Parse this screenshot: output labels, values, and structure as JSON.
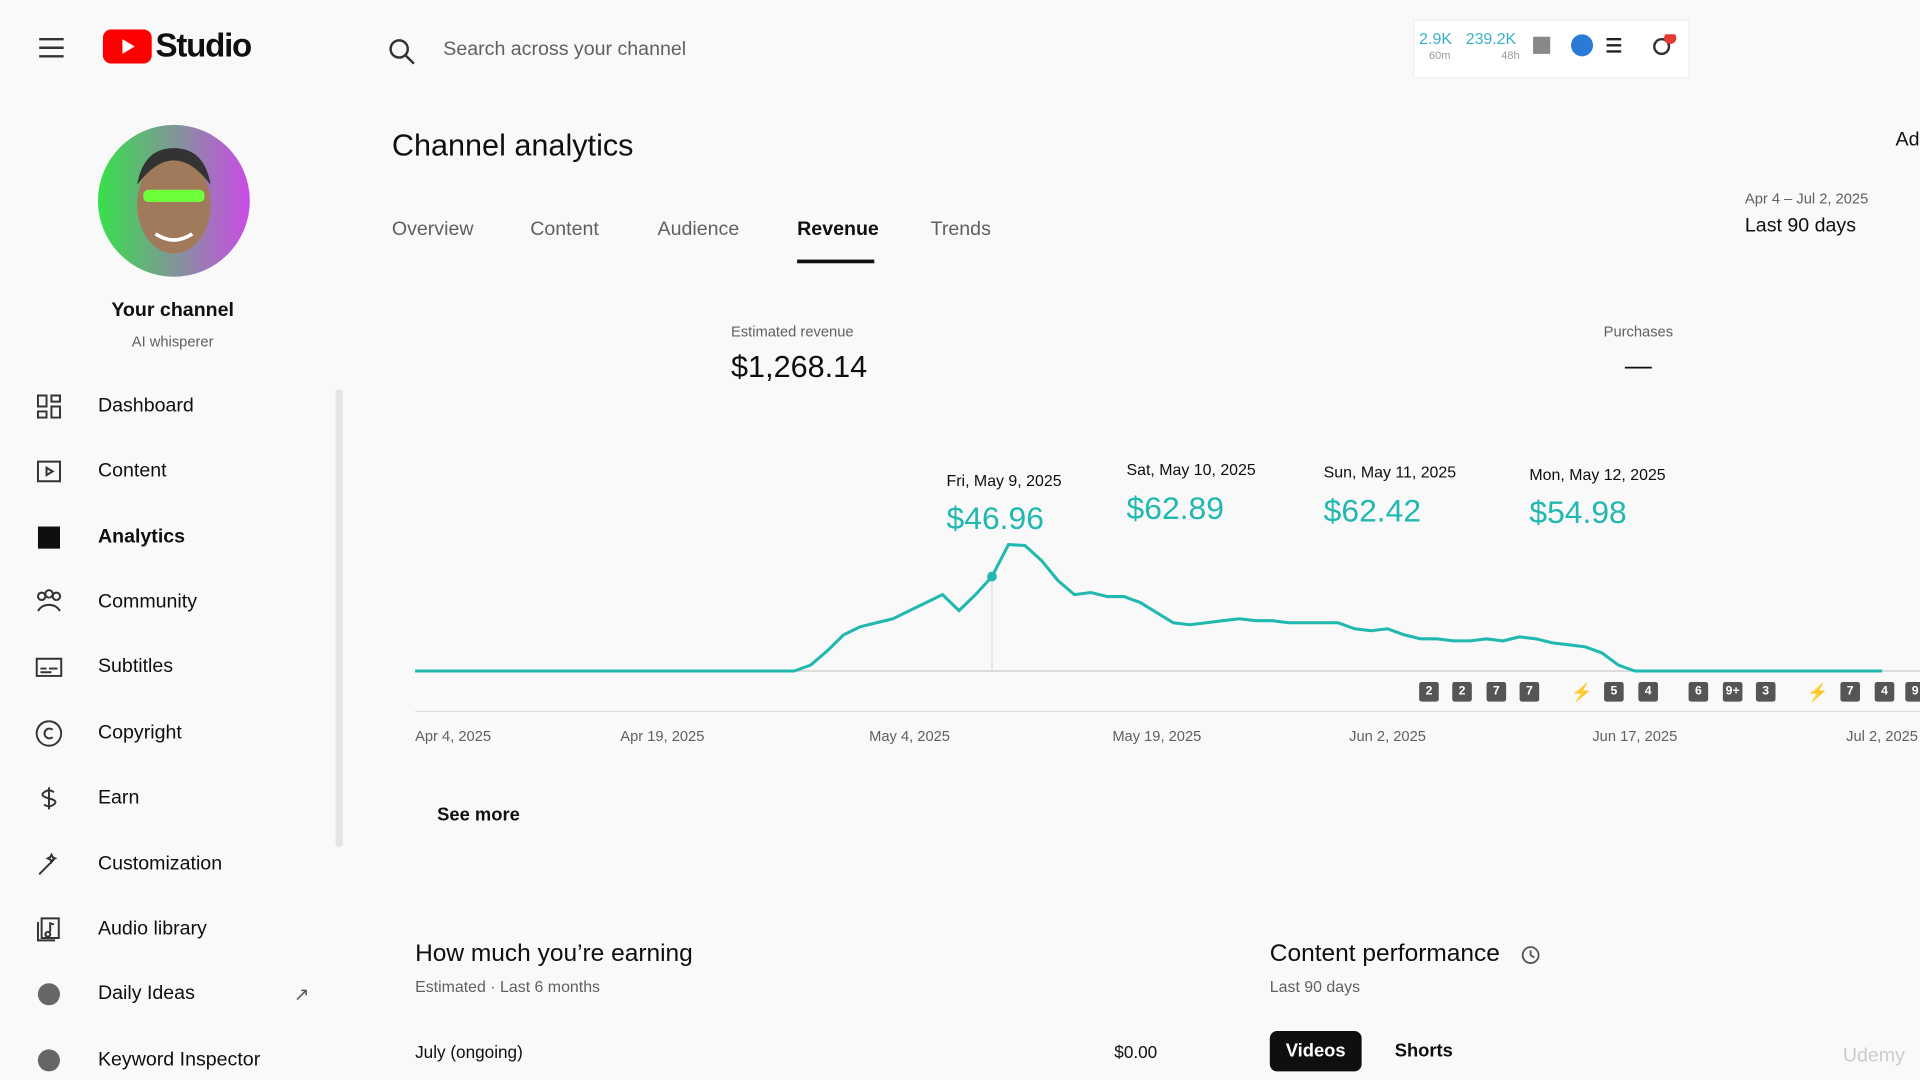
{
  "header": {
    "logo_text": "Studio",
    "search_placeholder": "Search across your channel",
    "stats": [
      "2.9K",
      "60m",
      "239.2K",
      "48h"
    ]
  },
  "sidebar": {
    "channel_name": "Your channel",
    "channel_handle": "AI whisperer",
    "nav": [
      "Dashboard",
      "Content",
      "Analytics",
      "Community",
      "Subtitles",
      "Copyright",
      "Earn",
      "Customization",
      "Audio library",
      "Daily Ideas",
      "Keyword Inspector"
    ]
  },
  "main": {
    "title": "Channel analytics",
    "tabs": [
      "Overview",
      "Content",
      "Audience",
      "Revenue",
      "Trends"
    ],
    "corner_text": "Ad",
    "date_range": "Apr 4 – Jul 2, 2025",
    "date_preset": "Last 90 days",
    "metrics": [
      {
        "label": "Estimated revenue",
        "value": "$1,268.14"
      },
      {
        "label": "Purchases",
        "value": "—"
      }
    ],
    "see_more": "See more",
    "earning": {
      "title": "How much you’re earning",
      "subtitle": "Estimated · Last 6 months",
      "rows": [
        [
          "July (ongoing)",
          "$0.00"
        ]
      ]
    },
    "content_performance": {
      "title": "Content performance",
      "subtitle": "Last 90 days",
      "toggles": [
        "Videos",
        "Shorts"
      ]
    },
    "watermark": "Udemy"
  },
  "chart_data": {
    "type": "line",
    "color": "#21b8b0",
    "ylim": [
      0,
      70
    ],
    "x_labels": [
      "Apr 4, 2025",
      "Apr 19, 2025",
      "May 4, 2025",
      "May 19, 2025",
      "Jun 2, 2025",
      "Jun 17, 2025",
      "Jul 2, 2025"
    ],
    "values": [
      0,
      0,
      0,
      0,
      0,
      0,
      0,
      0,
      0,
      0,
      0,
      0,
      0,
      0,
      0,
      0,
      0,
      0,
      0,
      0,
      0,
      0,
      0,
      0,
      3,
      10,
      18,
      22,
      24,
      26,
      30,
      34,
      38,
      30,
      38,
      46.96,
      62.89,
      62.42,
      54.98,
      45,
      38,
      39,
      37,
      37,
      34,
      29,
      24,
      23,
      24,
      25,
      26,
      25,
      25,
      24,
      24,
      24,
      24,
      21,
      20,
      21,
      18,
      16,
      16,
      15,
      15,
      16,
      15,
      17,
      16,
      14,
      13,
      12,
      9,
      3,
      0,
      0,
      0,
      0,
      0,
      0,
      0,
      0,
      0,
      0,
      0,
      0,
      0,
      0,
      0,
      0
    ],
    "tooltips": [
      {
        "date": "Fri, May 9, 2025",
        "value_label": "$46.96"
      },
      {
        "date": "Sat, May 10, 2025",
        "value_label": "$62.89"
      },
      {
        "date": "Sun, May 11, 2025",
        "value_label": "$62.42"
      },
      {
        "date": "Mon, May 12, 2025",
        "value_label": "$54.98"
      }
    ],
    "badges": [
      "2",
      "2",
      "7",
      "7",
      "⚡",
      "5",
      "4",
      "6",
      "9+",
      "3",
      "⚡",
      "7",
      "4",
      "9"
    ]
  }
}
